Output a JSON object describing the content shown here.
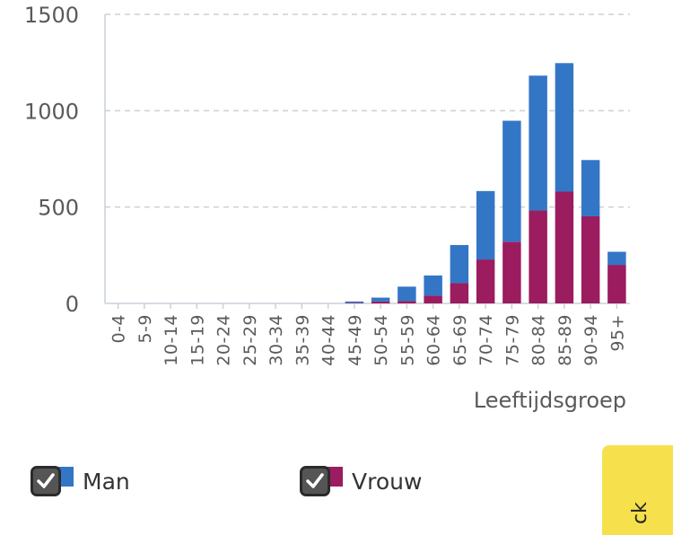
{
  "chart_data": {
    "type": "bar",
    "stacked": true,
    "categories": [
      "0-4",
      "5-9",
      "10-14",
      "15-19",
      "20-24",
      "25-29",
      "30-34",
      "35-39",
      "40-44",
      "45-49",
      "50-54",
      "55-59",
      "60-64",
      "65-69",
      "70-74",
      "75-79",
      "80-84",
      "85-89",
      "90-94",
      "95+"
    ],
    "series": [
      {
        "name": "Vrouw",
        "color": "#9b1c5f",
        "values": [
          0,
          0,
          0,
          0,
          0,
          0,
          0,
          0,
          0,
          3,
          10,
          12,
          40,
          105,
          228,
          320,
          482,
          580,
          452,
          200
        ]
      },
      {
        "name": "Man",
        "color": "#3476c6",
        "values": [
          0,
          0,
          0,
          0,
          0,
          0,
          0,
          0,
          0,
          7,
          20,
          75,
          105,
          198,
          355,
          628,
          700,
          667,
          292,
          68
        ]
      }
    ],
    "xlabel": "Leeftijdsgroep",
    "ylabel": "",
    "ylim": [
      0,
      1500
    ],
    "yticks": [
      0,
      500,
      1000,
      1500
    ],
    "grid": true
  },
  "legend": {
    "items": [
      {
        "label": "Man",
        "color": "#3476c6",
        "checked": true
      },
      {
        "label": "Vrouw",
        "color": "#9b1c5f",
        "checked": true
      }
    ]
  },
  "side_tab": {
    "label": "ck"
  }
}
